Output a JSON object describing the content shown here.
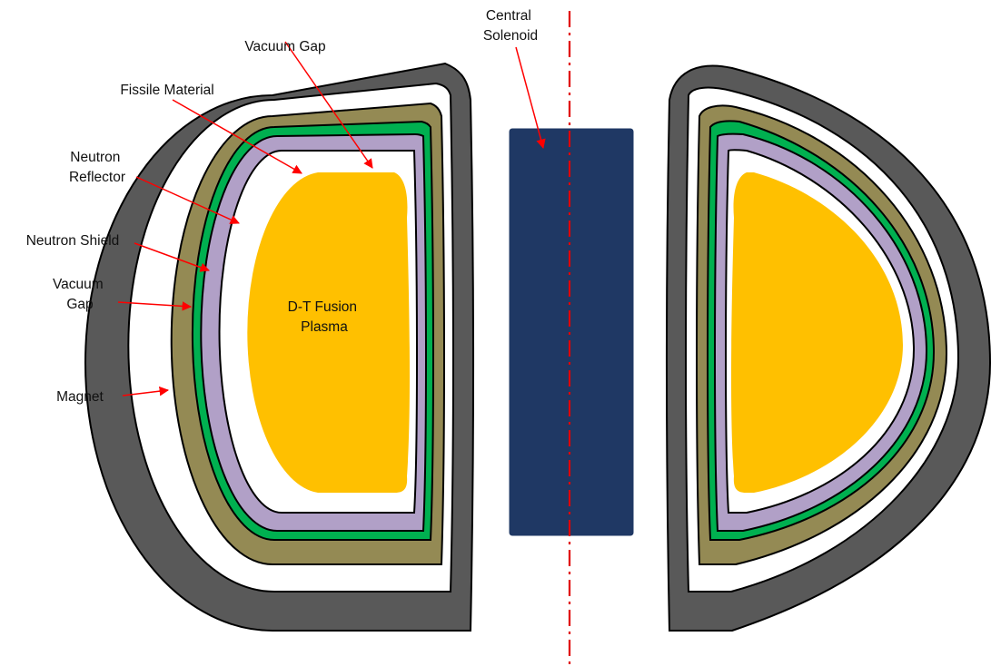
{
  "labels": {
    "central_solenoid": [
      "Central",
      "Solenoid"
    ],
    "vacuum_gap_top": "Vacuum Gap",
    "fissile_material": "Fissile Material",
    "neutron_reflector": [
      "Neutron",
      "Reflector"
    ],
    "neutron_shield": "Neutron Shield",
    "vacuum_gap_side": [
      "Vacuum",
      "Gap"
    ],
    "magnet": "Magnet",
    "plasma": [
      "D-T Fusion",
      "Plasma"
    ]
  },
  "colors": {
    "magnet": "#595959",
    "vacuum_gap": "#ffffff",
    "neutron_shield": "#948a54",
    "neutron_reflector": "#00b050",
    "fissile_material": "#b1a0c7",
    "plasma": "#ffc000",
    "central_solenoid": "#1f3864",
    "arrow": "#ff0000",
    "outline": "#000000"
  }
}
